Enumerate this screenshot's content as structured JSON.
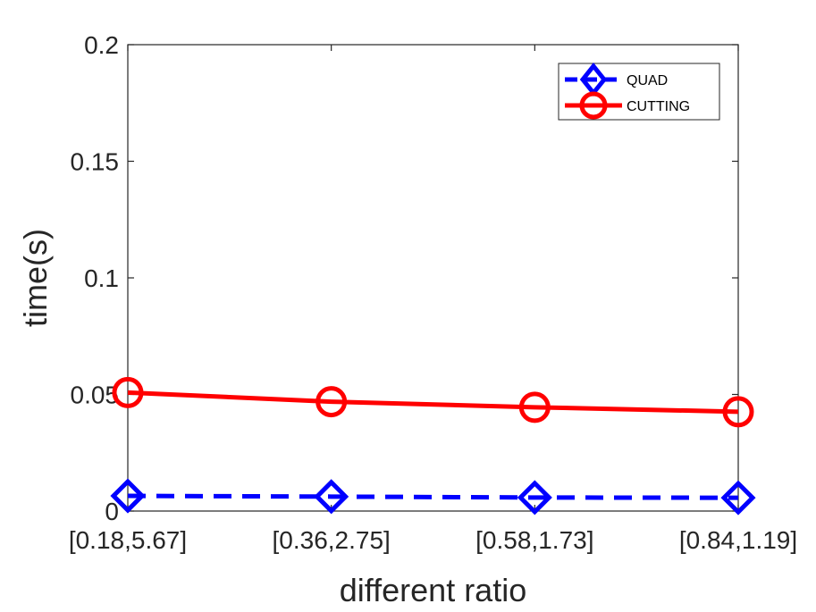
{
  "chart_data": {
    "type": "line",
    "title": "",
    "xlabel": "different ratio",
    "ylabel": "time(s)",
    "categories": [
      "[0.18,5.67]",
      "[0.36,2.75]",
      "[0.58,1.73]",
      "[0.84,1.19]"
    ],
    "ylim": [
      0,
      0.2
    ],
    "yticks": [
      0,
      0.05,
      0.1,
      0.15,
      0.2
    ],
    "ytick_labels": [
      "0",
      "0.05",
      "0.1",
      "0.15",
      "0.2"
    ],
    "grid": false,
    "legend_position": "top-right",
    "series": [
      {
        "name": "QUAD",
        "values": [
          0.0065,
          0.0062,
          0.0058,
          0.0057
        ],
        "color": "#0000ff",
        "line_style": "dashed",
        "marker": "diamond"
      },
      {
        "name": "CUTTING",
        "values": [
          0.0508,
          0.0469,
          0.0445,
          0.0426
        ],
        "color": "#ff0000",
        "line_style": "solid",
        "marker": "circle"
      }
    ]
  }
}
